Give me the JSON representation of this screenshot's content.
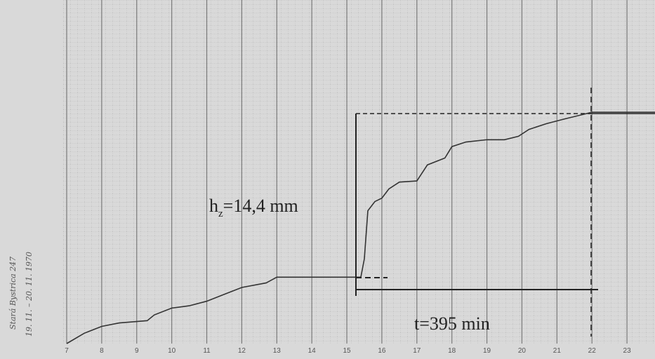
{
  "chart_data": {
    "type": "line",
    "annotations": [
      "h",
      "z",
      "=14,4 mm",
      "t=395 min"
    ],
    "notes": [
      "Stará Bystrica 247",
      "19. 11. – 20. 11. 1970"
    ],
    "x": [
      7,
      7.5,
      8,
      8.5,
      9.3,
      9.5,
      10,
      10.5,
      11,
      11.5,
      12,
      12.7,
      13,
      14,
      15,
      15.4,
      15.5,
      15.6,
      15.8,
      16,
      16.2,
      16.5,
      17,
      17.3,
      17.8,
      18,
      18.4,
      19,
      19.5,
      19.9,
      20.2,
      20.7,
      21.2,
      21.6,
      22,
      23.8
    ],
    "series": [
      {
        "color": "#333333",
        "values": [
          0,
          0.9,
          1.5,
          1.8,
          2.0,
          2.5,
          3.1,
          3.3,
          3.7,
          4.3,
          4.9,
          5.3,
          5.8,
          5.8,
          5.8,
          5.8,
          7.4,
          11.6,
          12.4,
          12.7,
          13.5,
          14.1,
          14.2,
          15.6,
          16.2,
          17.2,
          17.6,
          17.8,
          17.8,
          18.1,
          18.7,
          19.2,
          19.6,
          19.9,
          20.2,
          20.2
        ]
      }
    ],
    "xlim": [
      6.9,
      23.8
    ],
    "xticks": [
      7,
      8,
      9,
      10,
      11,
      12,
      13,
      14,
      15,
      16,
      17,
      18,
      19,
      20,
      21,
      22,
      23
    ],
    "ylim": [
      0,
      30
    ],
    "grid": true
  }
}
